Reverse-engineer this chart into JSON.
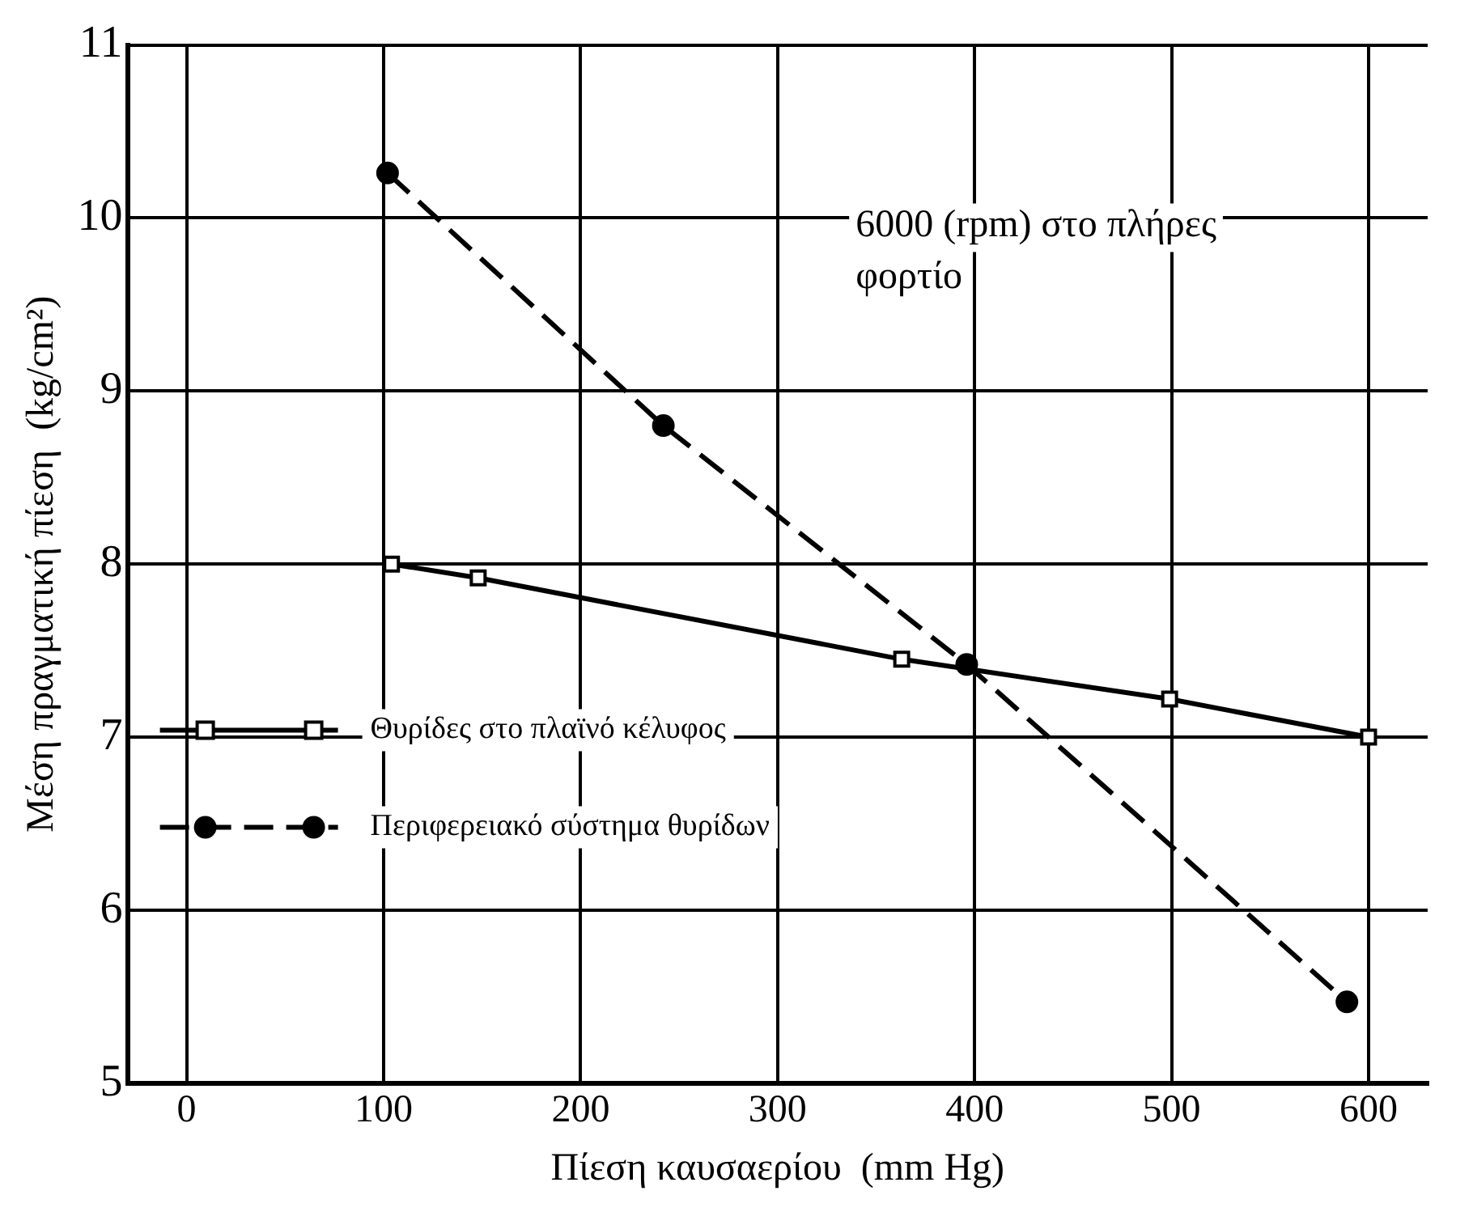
{
  "chart_data": {
    "type": "line",
    "xlabel": "Πίεση καυσαερίου  (mm Hg)",
    "ylabel": "Μέση πραγματική πίεση  (kg/cm²)",
    "xlim": [
      -30,
      630
    ],
    "xticks": [
      0,
      100,
      200,
      300,
      400,
      500,
      600
    ],
    "ylim": [
      5,
      11
    ],
    "yticks": [
      5,
      6,
      7,
      8,
      9,
      10,
      11
    ],
    "grid": true,
    "legend": "left",
    "annotations": [
      "6000 (rpm) στο πλήρες φορτίο"
    ],
    "series": [
      {
        "name": "Θυρίδες στο πλαϊνό κέλυφος",
        "color": "#000000",
        "marker": "square",
        "line_style": "solid",
        "x": [
          104,
          148,
          363,
          499,
          600
        ],
        "values": [
          8.0,
          7.92,
          7.45,
          7.22,
          7.0
        ]
      },
      {
        "name": "Περιφερειακό σύστημα θυρίδων",
        "color": "#000000",
        "marker": "circle",
        "line_style": "dashed",
        "x": [
          102,
          242,
          396,
          589
        ],
        "values": [
          10.26,
          8.8,
          7.42,
          5.47
        ]
      }
    ]
  }
}
